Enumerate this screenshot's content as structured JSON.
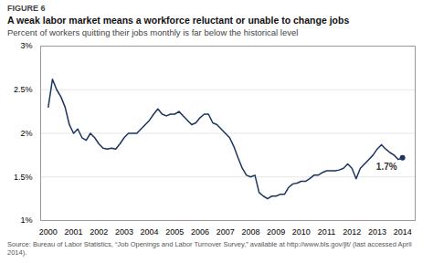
{
  "chart_data": {
    "type": "line",
    "figure_label": "FIGURE 6",
    "title": "A weak labor market means a workforce reluctant or unable to change jobs",
    "subtitle": "Percent of workers quitting their jobs monthly is far below the historical level",
    "source": "Source: Bureau of Labor Statistics, “Job Openings and Labor Turnover Survey,” available at http://www.bls.gov/jlt/ (last accessed April 2014).",
    "annotation": "1.7%",
    "color": "#1c3461",
    "grid": true,
    "x": [
      2000,
      2000.1666666666667,
      2000.3333333333333,
      2000.5,
      2000.6666666666667,
      2000.8333333333333,
      2001,
      2001.1666666666667,
      2001.3333333333333,
      2001.5,
      2001.6666666666667,
      2001.8333333333333,
      2002,
      2002.1666666666667,
      2002.3333333333333,
      2002.5,
      2002.6666666666667,
      2002.8333333333333,
      2003,
      2003.1666666666667,
      2003.3333333333333,
      2003.5,
      2003.6666666666667,
      2003.8333333333333,
      2004,
      2004.1666666666667,
      2004.3333333333333,
      2004.5,
      2004.6666666666667,
      2004.8333333333333,
      2005,
      2005.1666666666667,
      2005.3333333333333,
      2005.5,
      2005.6666666666667,
      2005.8333333333333,
      2006,
      2006.1666666666667,
      2006.3333333333333,
      2006.5,
      2006.6666666666667,
      2006.8333333333333,
      2007,
      2007.1666666666667,
      2007.3333333333333,
      2007.5,
      2007.6666666666667,
      2007.8333333333333,
      2008,
      2008.1666666666667,
      2008.3333333333333,
      2008.5,
      2008.6666666666667,
      2008.8333333333333,
      2009,
      2009.1666666666667,
      2009.3333333333333,
      2009.5,
      2009.6666666666667,
      2009.8333333333333,
      2010,
      2010.1666666666667,
      2010.3333333333333,
      2010.5,
      2010.6666666666667,
      2010.8333333333333,
      2011,
      2011.1666666666667,
      2011.3333333333333,
      2011.5,
      2011.6666666666667,
      2011.8333333333333,
      2012,
      2012.1666666666667,
      2012.3333333333333,
      2012.5,
      2012.6666666666667,
      2012.8333333333333,
      2013,
      2013.1666666666667,
      2013.3333333333333,
      2013.5,
      2013.6666666666667,
      2013.8333333333333,
      2014
    ],
    "values": [
      2.3,
      2.62,
      2.5,
      2.42,
      2.3,
      2.1,
      2.0,
      2.05,
      1.95,
      1.92,
      2.0,
      1.95,
      1.88,
      1.83,
      1.82,
      1.83,
      1.82,
      1.88,
      1.95,
      2.0,
      2.0,
      2.0,
      2.05,
      2.1,
      2.15,
      2.22,
      2.28,
      2.22,
      2.2,
      2.22,
      2.22,
      2.25,
      2.2,
      2.15,
      2.1,
      2.12,
      2.18,
      2.22,
      2.22,
      2.12,
      2.1,
      2.05,
      2.0,
      1.95,
      1.85,
      1.72,
      1.6,
      1.52,
      1.5,
      1.52,
      1.32,
      1.28,
      1.25,
      1.28,
      1.28,
      1.3,
      1.3,
      1.38,
      1.42,
      1.43,
      1.45,
      1.45,
      1.48,
      1.52,
      1.52,
      1.55,
      1.57,
      1.57,
      1.57,
      1.58,
      1.6,
      1.65,
      1.6,
      1.48,
      1.6,
      1.65,
      1.7,
      1.75,
      1.82,
      1.87,
      1.82,
      1.78,
      1.75,
      1.7,
      1.72
    ],
    "xlim": [
      1999.7,
      2014.5
    ],
    "xticks": [
      2000,
      2001,
      2002,
      2003,
      2004,
      2005,
      2006,
      2007,
      2008,
      2009,
      2010,
      2011,
      2012,
      2013,
      2014
    ],
    "ylim": [
      1.0,
      3.0
    ],
    "yticks": [
      {
        "value": 1.0,
        "label": "1%"
      },
      {
        "value": 1.5,
        "label": "1.5%"
      },
      {
        "value": 2.0,
        "label": "2%"
      },
      {
        "value": 2.5,
        "label": "2.5%"
      },
      {
        "value": 3.0,
        "label": "3%"
      }
    ]
  }
}
